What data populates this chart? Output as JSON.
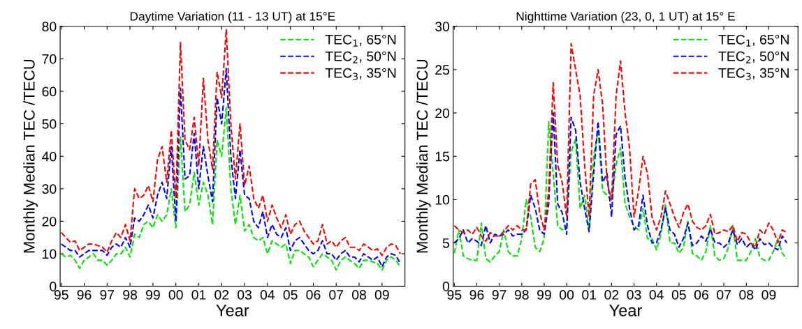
{
  "chart_data": [
    {
      "type": "line",
      "title": "Daytime Variation (11 - 13 UT) at 15°E",
      "xlabel": "Year",
      "ylabel": "Monthly Median TEC /TECU",
      "legend": "top right",
      "grid": false,
      "line_style": "dashed",
      "marker": "none",
      "x": [
        1995.0,
        1995.2,
        1995.4,
        1995.6,
        1995.8,
        1996.0,
        1996.2,
        1996.4,
        1996.6,
        1996.8,
        1997.0,
        1997.2,
        1997.4,
        1997.6,
        1997.8,
        1998.0,
        1998.2,
        1998.4,
        1998.6,
        1998.8,
        1999.0,
        1999.2,
        1999.4,
        1999.6,
        1999.8,
        2000.0,
        2000.2,
        2000.4,
        2000.6,
        2000.8,
        2001.0,
        2001.2,
        2001.4,
        2001.6,
        2001.8,
        2002.0,
        2002.2,
        2002.4,
        2002.6,
        2002.8,
        2003.0,
        2003.2,
        2003.4,
        2003.6,
        2003.8,
        2004.0,
        2004.2,
        2004.4,
        2004.6,
        2004.8,
        2005.0,
        2005.2,
        2005.4,
        2005.6,
        2005.8,
        2006.0,
        2006.2,
        2006.4,
        2006.6,
        2006.8,
        2007.0,
        2007.2,
        2007.4,
        2007.6,
        2007.8,
        2008.0,
        2008.2,
        2008.4,
        2008.6,
        2008.8,
        2009.0,
        2009.2,
        2009.4,
        2009.6,
        2009.8
      ],
      "series": [
        {
          "name": "TEC$_{1}$, 65°N",
          "color": "#00e600",
          "values": [
            10,
            9,
            9.5,
            8,
            5.5,
            8,
            9,
            10,
            8,
            8,
            6.5,
            8,
            10,
            10,
            12,
            9,
            16,
            15,
            19,
            20,
            18,
            22,
            20,
            22,
            30,
            18,
            46,
            23,
            25,
            35,
            25,
            32,
            28,
            19,
            45,
            40,
            55,
            30,
            19,
            28,
            17,
            19,
            15,
            14,
            15,
            10,
            14,
            13,
            12,
            13,
            7,
            11,
            11,
            10,
            9,
            6,
            8,
            10,
            9,
            8,
            5,
            8,
            9,
            8,
            7,
            5.5,
            8,
            8,
            7.5,
            7,
            5,
            8,
            9,
            8,
            6
          ]
        },
        {
          "name": "TEC$_{2}$, 50°N",
          "color": "#0000ff",
          "values": [
            13,
            12,
            11,
            11,
            9,
            10,
            11,
            11,
            11,
            11,
            9.5,
            12,
            13,
            12,
            15,
            12,
            21,
            20,
            22,
            25,
            21,
            28,
            32,
            27,
            43,
            20,
            61,
            33,
            34,
            47,
            30,
            43,
            34,
            26,
            58,
            50,
            67,
            40,
            27,
            42,
            28,
            27,
            20,
            18,
            23,
            15,
            19,
            16,
            15,
            18,
            11,
            14,
            15,
            13,
            11,
            10,
            11,
            14,
            10,
            10,
            8,
            10,
            11,
            9,
            9,
            7.5,
            10,
            9,
            8,
            9,
            6,
            9,
            10,
            9.5,
            7
          ]
        },
        {
          "name": "TEC$_{3}$, 35°N",
          "color": "#ff0000",
          "values": [
            16.5,
            15,
            13.5,
            14,
            11,
            12,
            13,
            13,
            12.5,
            12,
            10.5,
            14,
            16.5,
            15,
            19,
            14,
            30,
            27,
            28,
            31,
            26,
            39,
            43,
            32,
            48,
            27,
            75,
            45,
            42,
            52,
            37,
            64,
            45,
            36,
            66,
            58,
            79,
            50,
            33,
            50,
            31,
            37,
            27,
            24,
            28,
            20,
            25,
            21,
            18,
            22,
            16,
            19,
            20,
            17,
            15,
            13,
            14,
            19,
            13,
            14,
            12,
            14,
            15,
            12,
            12,
            11,
            13,
            12,
            11,
            11.5,
            9.5,
            12,
            13,
            12.5,
            10
          ]
        }
      ],
      "xlim": [
        1994.95,
        2010.0
      ],
      "xticks": [
        {
          "value": 1995,
          "label": "95"
        },
        {
          "value": 1996,
          "label": "96"
        },
        {
          "value": 1997,
          "label": "97"
        },
        {
          "value": 1998,
          "label": "98"
        },
        {
          "value": 1999,
          "label": "99"
        },
        {
          "value": 2000,
          "label": "00"
        },
        {
          "value": 2001,
          "label": "01"
        },
        {
          "value": 2002,
          "label": "02"
        },
        {
          "value": 2003,
          "label": "03"
        },
        {
          "value": 2004,
          "label": "04"
        },
        {
          "value": 2005,
          "label": "05"
        },
        {
          "value": 2006,
          "label": "06"
        },
        {
          "value": 2007,
          "label": "07"
        },
        {
          "value": 2008,
          "label": "08"
        },
        {
          "value": 2009,
          "label": "09"
        }
      ],
      "ylim": [
        0,
        80
      ],
      "yticks": [
        0,
        10,
        20,
        30,
        40,
        50,
        60,
        70,
        80
      ]
    },
    {
      "type": "line",
      "title": "Nighttime Variation (23, 0, 1 UT) at 15° E",
      "xlabel": "Year",
      "ylabel": "Monthly Median TEC /TECU",
      "legend": "top right",
      "grid": false,
      "line_style": "dashed",
      "marker": "none",
      "x": [
        1995.0,
        1995.2,
        1995.4,
        1995.6,
        1995.8,
        1996.0,
        1996.2,
        1996.4,
        1996.6,
        1996.8,
        1997.0,
        1997.2,
        1997.4,
        1997.6,
        1997.8,
        1998.0,
        1998.2,
        1998.4,
        1998.6,
        1998.8,
        1999.0,
        1999.2,
        1999.4,
        1999.6,
        1999.8,
        2000.0,
        2000.2,
        2000.4,
        2000.6,
        2000.8,
        2001.0,
        2001.2,
        2001.4,
        2001.6,
        2001.8,
        2002.0,
        2002.2,
        2002.4,
        2002.6,
        2002.8,
        2003.0,
        2003.2,
        2003.4,
        2003.6,
        2003.8,
        2004.0,
        2004.2,
        2004.4,
        2004.6,
        2004.8,
        2005.0,
        2005.2,
        2005.4,
        2005.6,
        2005.8,
        2006.0,
        2006.2,
        2006.4,
        2006.6,
        2006.8,
        2007.0,
        2007.2,
        2007.4,
        2007.6,
        2007.8,
        2008.0,
        2008.2,
        2008.4,
        2008.6,
        2008.8,
        2009.0,
        2009.2,
        2009.4,
        2009.6,
        2009.8
      ],
      "series": [
        {
          "name": "TEC$_{1}$, 65°N",
          "color": "#00e600",
          "values": [
            3.8,
            6.5,
            3.5,
            3.2,
            3,
            3,
            7.3,
            3.2,
            2.8,
            3.5,
            4,
            6.5,
            4,
            3.5,
            3.5,
            5.5,
            10,
            8,
            4.5,
            4,
            5.5,
            19,
            13,
            7,
            6.5,
            7,
            15.5,
            17,
            9,
            10.5,
            6.5,
            15,
            18,
            11,
            10.5,
            10,
            14,
            16,
            9.5,
            8,
            7,
            6.5,
            9,
            5.5,
            5.5,
            4.2,
            6,
            9.5,
            5,
            5,
            3.8,
            4.5,
            7.5,
            3.8,
            3.5,
            3,
            4,
            7,
            3.5,
            3,
            3.2,
            4.5,
            7,
            3,
            3,
            3,
            4,
            5.5,
            3.3,
            3,
            3,
            4,
            5.5,
            3.8,
            3.2
          ]
        },
        {
          "name": "TEC$_{2}$, 50°N",
          "color": "#0000ff",
          "values": [
            5,
            5.5,
            6.5,
            5,
            5.5,
            5.2,
            4.7,
            7,
            5,
            6,
            5.8,
            6,
            6.5,
            5.8,
            6,
            6,
            6.5,
            10.5,
            9,
            6.5,
            6,
            9.5,
            20,
            9.5,
            8.5,
            6,
            19.5,
            18,
            12,
            9,
            6.3,
            13,
            19,
            12,
            13,
            8,
            17.5,
            18.5,
            12.5,
            9,
            6.5,
            7,
            10.5,
            7,
            5,
            5,
            6.5,
            9,
            6.5,
            6,
            4.5,
            5.5,
            7.3,
            4.7,
            5,
            5.8,
            5.2,
            6.6,
            5,
            5,
            4.5,
            5,
            6.5,
            4.8,
            5.5,
            4.5,
            5,
            4.2,
            5.5,
            4.8,
            5,
            4.5,
            4.2,
            5.8,
            5
          ]
        },
        {
          "name": "TEC$_{3}$, 35°N",
          "color": "#ff0000",
          "values": [
            7,
            6.5,
            6.2,
            6.5,
            6,
            6.8,
            5.8,
            5.2,
            6.2,
            5.8,
            5.8,
            6.3,
            7,
            6.5,
            7,
            6.5,
            6.5,
            11.8,
            12.3,
            8.5,
            6.5,
            11,
            23.5,
            14,
            12,
            8,
            28,
            25,
            22,
            14,
            8,
            22,
            25,
            21,
            12,
            10,
            22,
            26,
            20,
            16,
            8,
            11,
            15,
            13,
            8,
            6.5,
            8,
            11,
            9.5,
            8,
            6.8,
            8.5,
            9.5,
            7.5,
            6.8,
            6.5,
            7,
            8.3,
            6,
            6.2,
            6.5,
            6.3,
            7,
            5.2,
            6.2,
            6,
            5,
            4.5,
            6.5,
            6,
            7.3,
            6.5,
            5,
            6.5,
            6.2
          ]
        }
      ],
      "xlim": [
        1994.95,
        2010.3
      ],
      "xticks": [
        {
          "value": 1995,
          "label": "95"
        },
        {
          "value": 1996,
          "label": "96"
        },
        {
          "value": 1997,
          "label": "97"
        },
        {
          "value": 1998,
          "label": "98"
        },
        {
          "value": 1999,
          "label": "99"
        },
        {
          "value": 2000,
          "label": "00"
        },
        {
          "value": 2001,
          "label": "01"
        },
        {
          "value": 2002,
          "label": "02"
        },
        {
          "value": 2003,
          "label": "03"
        },
        {
          "value": 2004,
          "label": "04"
        },
        {
          "value": 2005,
          "label": "05"
        },
        {
          "value": 2006,
          "label": "06"
        },
        {
          "value": 2007,
          "label": "07"
        },
        {
          "value": 2008,
          "label": "08"
        },
        {
          "value": 2009,
          "label": "09"
        }
      ],
      "ylim": [
        0,
        30
      ],
      "yticks": [
        0,
        5,
        10,
        15,
        20,
        25,
        30
      ]
    }
  ]
}
